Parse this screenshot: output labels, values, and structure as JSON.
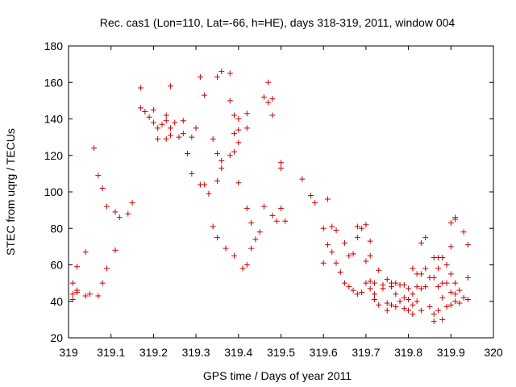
{
  "chart_data": {
    "type": "scatter",
    "title": "Rec. cas1 (Lon=110, Lat=-66, h=HE), days 318-319, 2011, window 004",
    "xlabel": "GPS time / Days of year 2011",
    "ylabel": "STEC from uqrg / TECUs",
    "xlim": [
      319,
      320
    ],
    "ylim": [
      20,
      180
    ],
    "x_ticks": [
      319,
      319.1,
      319.2,
      319.3,
      319.4,
      319.5,
      319.6,
      319.7,
      319.8,
      319.9,
      320
    ],
    "x_tick_labels": [
      "319",
      "319.1",
      "319.2",
      "319.3",
      "319.4",
      "319.5",
      "319.6",
      "319.7",
      "319.8",
      "319.9",
      "320"
    ],
    "y_ticks": [
      20,
      40,
      60,
      80,
      100,
      120,
      140,
      160,
      180
    ],
    "y_tick_labels": [
      "20",
      "40",
      "60",
      "80",
      "100",
      "120",
      "140",
      "160",
      "180"
    ],
    "grid": false,
    "marker": "+",
    "marker_color": "#cc0000",
    "series": [
      {
        "points": [
          [
            319.01,
            41
          ],
          [
            319.01,
            44
          ],
          [
            319.01,
            50
          ],
          [
            319.02,
            45
          ],
          [
            319.02,
            46
          ],
          [
            319.02,
            59
          ],
          [
            319.04,
            43
          ],
          [
            319.04,
            67
          ],
          [
            319.05,
            44
          ],
          [
            319.06,
            124
          ],
          [
            319.07,
            43
          ],
          [
            319.07,
            109
          ],
          [
            319.08,
            50
          ],
          [
            319.08,
            102
          ],
          [
            319.09,
            58
          ],
          [
            319.09,
            92
          ],
          [
            319.11,
            68
          ],
          [
            319.11,
            89
          ],
          [
            319.12,
            86
          ],
          [
            319.14,
            88
          ],
          [
            319.15,
            94
          ],
          [
            319.17,
            157
          ],
          [
            319.17,
            146
          ],
          [
            319.18,
            144
          ],
          [
            319.19,
            141
          ],
          [
            319.2,
            145
          ],
          [
            319.2,
            138
          ],
          [
            319.21,
            135
          ],
          [
            319.21,
            129
          ],
          [
            319.22,
            137
          ],
          [
            319.23,
            142
          ],
          [
            319.23,
            139
          ],
          [
            319.23,
            129
          ],
          [
            319.24,
            135
          ],
          [
            319.24,
            131
          ],
          [
            319.24,
            158
          ],
          [
            319.25,
            138
          ],
          [
            319.26,
            130
          ],
          [
            319.27,
            139
          ],
          [
            319.27,
            132
          ],
          [
            319.28,
            121
          ],
          [
            319.29,
            130
          ],
          [
            319.29,
            110
          ],
          [
            319.3,
            135
          ],
          [
            319.31,
            104
          ],
          [
            319.31,
            163
          ],
          [
            319.32,
            153
          ],
          [
            319.32,
            104
          ],
          [
            319.33,
            99
          ],
          [
            319.34,
            129
          ],
          [
            319.34,
            81
          ],
          [
            319.35,
            163
          ],
          [
            319.35,
            121
          ],
          [
            319.35,
            106
          ],
          [
            319.35,
            75
          ],
          [
            319.36,
            113
          ],
          [
            319.36,
            117
          ],
          [
            319.36,
            166
          ],
          [
            319.37,
            69
          ],
          [
            319.38,
            150
          ],
          [
            319.38,
            165
          ],
          [
            319.38,
            120
          ],
          [
            319.39,
            142
          ],
          [
            319.39,
            132
          ],
          [
            319.39,
            122
          ],
          [
            319.39,
            65
          ],
          [
            319.4,
            140
          ],
          [
            319.4,
            134
          ],
          [
            319.4,
            127
          ],
          [
            319.4,
            105
          ],
          [
            319.41,
            58
          ],
          [
            319.42,
            135
          ],
          [
            319.42,
            143
          ],
          [
            319.42,
            91
          ],
          [
            319.42,
            60
          ],
          [
            319.43,
            83
          ],
          [
            319.43,
            69
          ],
          [
            319.44,
            74
          ],
          [
            319.45,
            78
          ],
          [
            319.46,
            92
          ],
          [
            319.46,
            152
          ],
          [
            319.47,
            149
          ],
          [
            319.47,
            160
          ],
          [
            319.48,
            87
          ],
          [
            319.48,
            151
          ],
          [
            319.48,
            142
          ],
          [
            319.49,
            84
          ],
          [
            319.5,
            91
          ],
          [
            319.5,
            116
          ],
          [
            319.5,
            113
          ],
          [
            319.51,
            84
          ],
          [
            319.55,
            107
          ],
          [
            319.57,
            98
          ],
          [
            319.58,
            94
          ],
          [
            319.6,
            80
          ],
          [
            319.6,
            61
          ],
          [
            319.61,
            96
          ],
          [
            319.61,
            71
          ],
          [
            319.62,
            67
          ],
          [
            319.62,
            81
          ],
          [
            319.63,
            79
          ],
          [
            319.63,
            61
          ],
          [
            319.64,
            56
          ],
          [
            319.65,
            72
          ],
          [
            319.65,
            50
          ],
          [
            319.66,
            65
          ],
          [
            319.66,
            48
          ],
          [
            319.67,
            46
          ],
          [
            319.67,
            66
          ],
          [
            319.68,
            81
          ],
          [
            319.68,
            75
          ],
          [
            319.68,
            44
          ],
          [
            319.69,
            80
          ],
          [
            319.69,
            45
          ],
          [
            319.7,
            82
          ],
          [
            319.7,
            62
          ],
          [
            319.7,
            50
          ],
          [
            319.71,
            73
          ],
          [
            319.71,
            65
          ],
          [
            319.71,
            51
          ],
          [
            319.71,
            47
          ],
          [
            319.72,
            50
          ],
          [
            319.72,
            44
          ],
          [
            319.72,
            41
          ],
          [
            319.73,
            57
          ],
          [
            319.73,
            38
          ],
          [
            319.74,
            49
          ],
          [
            319.74,
            47
          ],
          [
            319.75,
            52
          ],
          [
            319.75,
            39
          ],
          [
            319.75,
            35
          ],
          [
            319.76,
            50
          ],
          [
            319.76,
            48
          ],
          [
            319.76,
            38
          ],
          [
            319.77,
            50
          ],
          [
            319.77,
            44
          ],
          [
            319.77,
            37
          ],
          [
            319.78,
            49
          ],
          [
            319.78,
            40
          ],
          [
            319.79,
            49
          ],
          [
            319.79,
            42
          ],
          [
            319.79,
            36
          ],
          [
            319.8,
            47
          ],
          [
            319.8,
            41
          ],
          [
            319.8,
            35
          ],
          [
            319.81,
            58
          ],
          [
            319.81,
            44
          ],
          [
            319.81,
            38
          ],
          [
            319.81,
            33
          ],
          [
            319.82,
            55
          ],
          [
            319.82,
            48
          ],
          [
            319.82,
            40
          ],
          [
            319.83,
            72
          ],
          [
            319.83,
            55
          ],
          [
            319.83,
            47
          ],
          [
            319.83,
            35
          ],
          [
            319.84,
            75
          ],
          [
            319.84,
            58
          ],
          [
            319.84,
            48
          ],
          [
            319.85,
            53
          ],
          [
            319.85,
            37
          ],
          [
            319.86,
            64
          ],
          [
            319.86,
            53
          ],
          [
            319.86,
            33
          ],
          [
            319.86,
            29
          ],
          [
            319.87,
            64
          ],
          [
            319.87,
            58
          ],
          [
            319.87,
            48
          ],
          [
            319.87,
            35
          ],
          [
            319.88,
            64
          ],
          [
            319.88,
            50
          ],
          [
            319.88,
            42
          ],
          [
            319.88,
            30
          ],
          [
            319.89,
            60
          ],
          [
            319.89,
            50
          ],
          [
            319.89,
            37
          ],
          [
            319.9,
            83
          ],
          [
            319.9,
            70
          ],
          [
            319.9,
            55
          ],
          [
            319.9,
            45
          ],
          [
            319.9,
            38
          ],
          [
            319.91,
            86
          ],
          [
            319.91,
            85
          ],
          [
            319.91,
            50
          ],
          [
            319.91,
            44
          ],
          [
            319.91,
            40
          ],
          [
            319.92,
            46
          ],
          [
            319.92,
            39
          ],
          [
            319.93,
            78
          ],
          [
            319.93,
            42
          ],
          [
            319.94,
            71
          ],
          [
            319.94,
            53
          ],
          [
            319.94,
            41
          ]
        ]
      }
    ]
  }
}
